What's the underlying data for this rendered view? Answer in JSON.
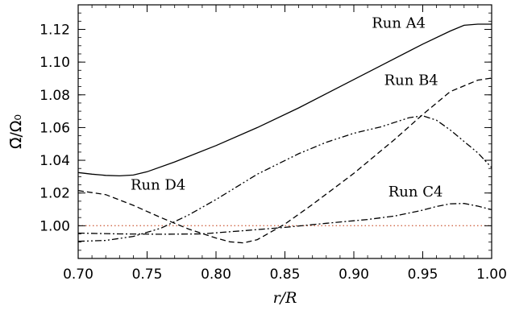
{
  "chart_data": {
    "type": "line",
    "xlabel": "r/R",
    "ylabel": "Ω̄/Ω₀",
    "xlim": [
      0.7,
      1.0
    ],
    "ylim": [
      0.98,
      1.135
    ],
    "x_ticks": [
      0.7,
      0.75,
      0.8,
      0.85,
      0.9,
      0.95,
      1.0
    ],
    "x_tick_labels": [
      "0.70",
      "0.75",
      "0.80",
      "0.85",
      "0.90",
      "0.95",
      "1.00"
    ],
    "y_ticks": [
      1.0,
      1.02,
      1.04,
      1.06,
      1.08,
      1.1,
      1.12
    ],
    "y_tick_labels": [
      "1.00",
      "1.02",
      "1.04",
      "1.06",
      "1.08",
      "1.10",
      "1.12"
    ],
    "reference_line": {
      "y": 1.0,
      "color": "#d06a4a",
      "style": "dotted"
    },
    "grid": false,
    "legend": "none",
    "series": [
      {
        "name": "Run A4",
        "style": "solid",
        "label_at": [
          0.913,
          1.121
        ],
        "x": [
          0.7,
          0.71,
          0.72,
          0.73,
          0.74,
          0.75,
          0.77,
          0.8,
          0.83,
          0.86,
          0.89,
          0.92,
          0.95,
          0.97,
          0.98,
          0.99,
          1.0
        ],
        "y": [
          1.0325,
          1.0315,
          1.0308,
          1.0305,
          1.031,
          1.033,
          1.039,
          1.049,
          1.06,
          1.072,
          1.085,
          1.098,
          1.111,
          1.119,
          1.1225,
          1.1232,
          1.1232
        ]
      },
      {
        "name": "Run B4",
        "style": "dashed",
        "label_at": [
          0.922,
          1.086
        ],
        "x": [
          0.7,
          0.72,
          0.74,
          0.76,
          0.78,
          0.8,
          0.81,
          0.82,
          0.83,
          0.85,
          0.87,
          0.9,
          0.93,
          0.95,
          0.97,
          0.99,
          1.0
        ],
        "y": [
          1.0215,
          1.019,
          1.0125,
          1.005,
          0.998,
          0.9925,
          0.9902,
          0.9895,
          0.9915,
          1.001,
          1.013,
          1.032,
          1.053,
          1.068,
          1.082,
          1.089,
          1.0902
        ]
      },
      {
        "name": "Run C4",
        "style": "dash-dot",
        "label_at": [
          0.925,
          1.018
        ],
        "x": [
          0.7,
          0.73,
          0.76,
          0.79,
          0.82,
          0.85,
          0.88,
          0.91,
          0.93,
          0.95,
          0.96,
          0.97,
          0.98,
          0.99,
          1.0
        ],
        "y": [
          0.9955,
          0.995,
          0.9948,
          0.995,
          0.997,
          0.999,
          1.0015,
          1.0038,
          1.006,
          1.0095,
          1.0118,
          1.0134,
          1.0136,
          1.012,
          1.0098
        ]
      },
      {
        "name": "Run D4",
        "style": "dash-dot-dot",
        "label_at": [
          0.738,
          1.022
        ],
        "x": [
          0.7,
          0.72,
          0.74,
          0.76,
          0.78,
          0.8,
          0.83,
          0.86,
          0.88,
          0.9,
          0.92,
          0.94,
          0.95,
          0.96,
          0.97,
          0.98,
          0.99,
          1.0
        ],
        "y": [
          0.9905,
          0.991,
          0.9935,
          0.9985,
          1.0065,
          1.016,
          1.0315,
          1.044,
          1.051,
          1.0565,
          1.0605,
          1.066,
          1.0672,
          1.0645,
          1.0585,
          1.0515,
          1.0445,
          1.0355
        ]
      }
    ]
  }
}
